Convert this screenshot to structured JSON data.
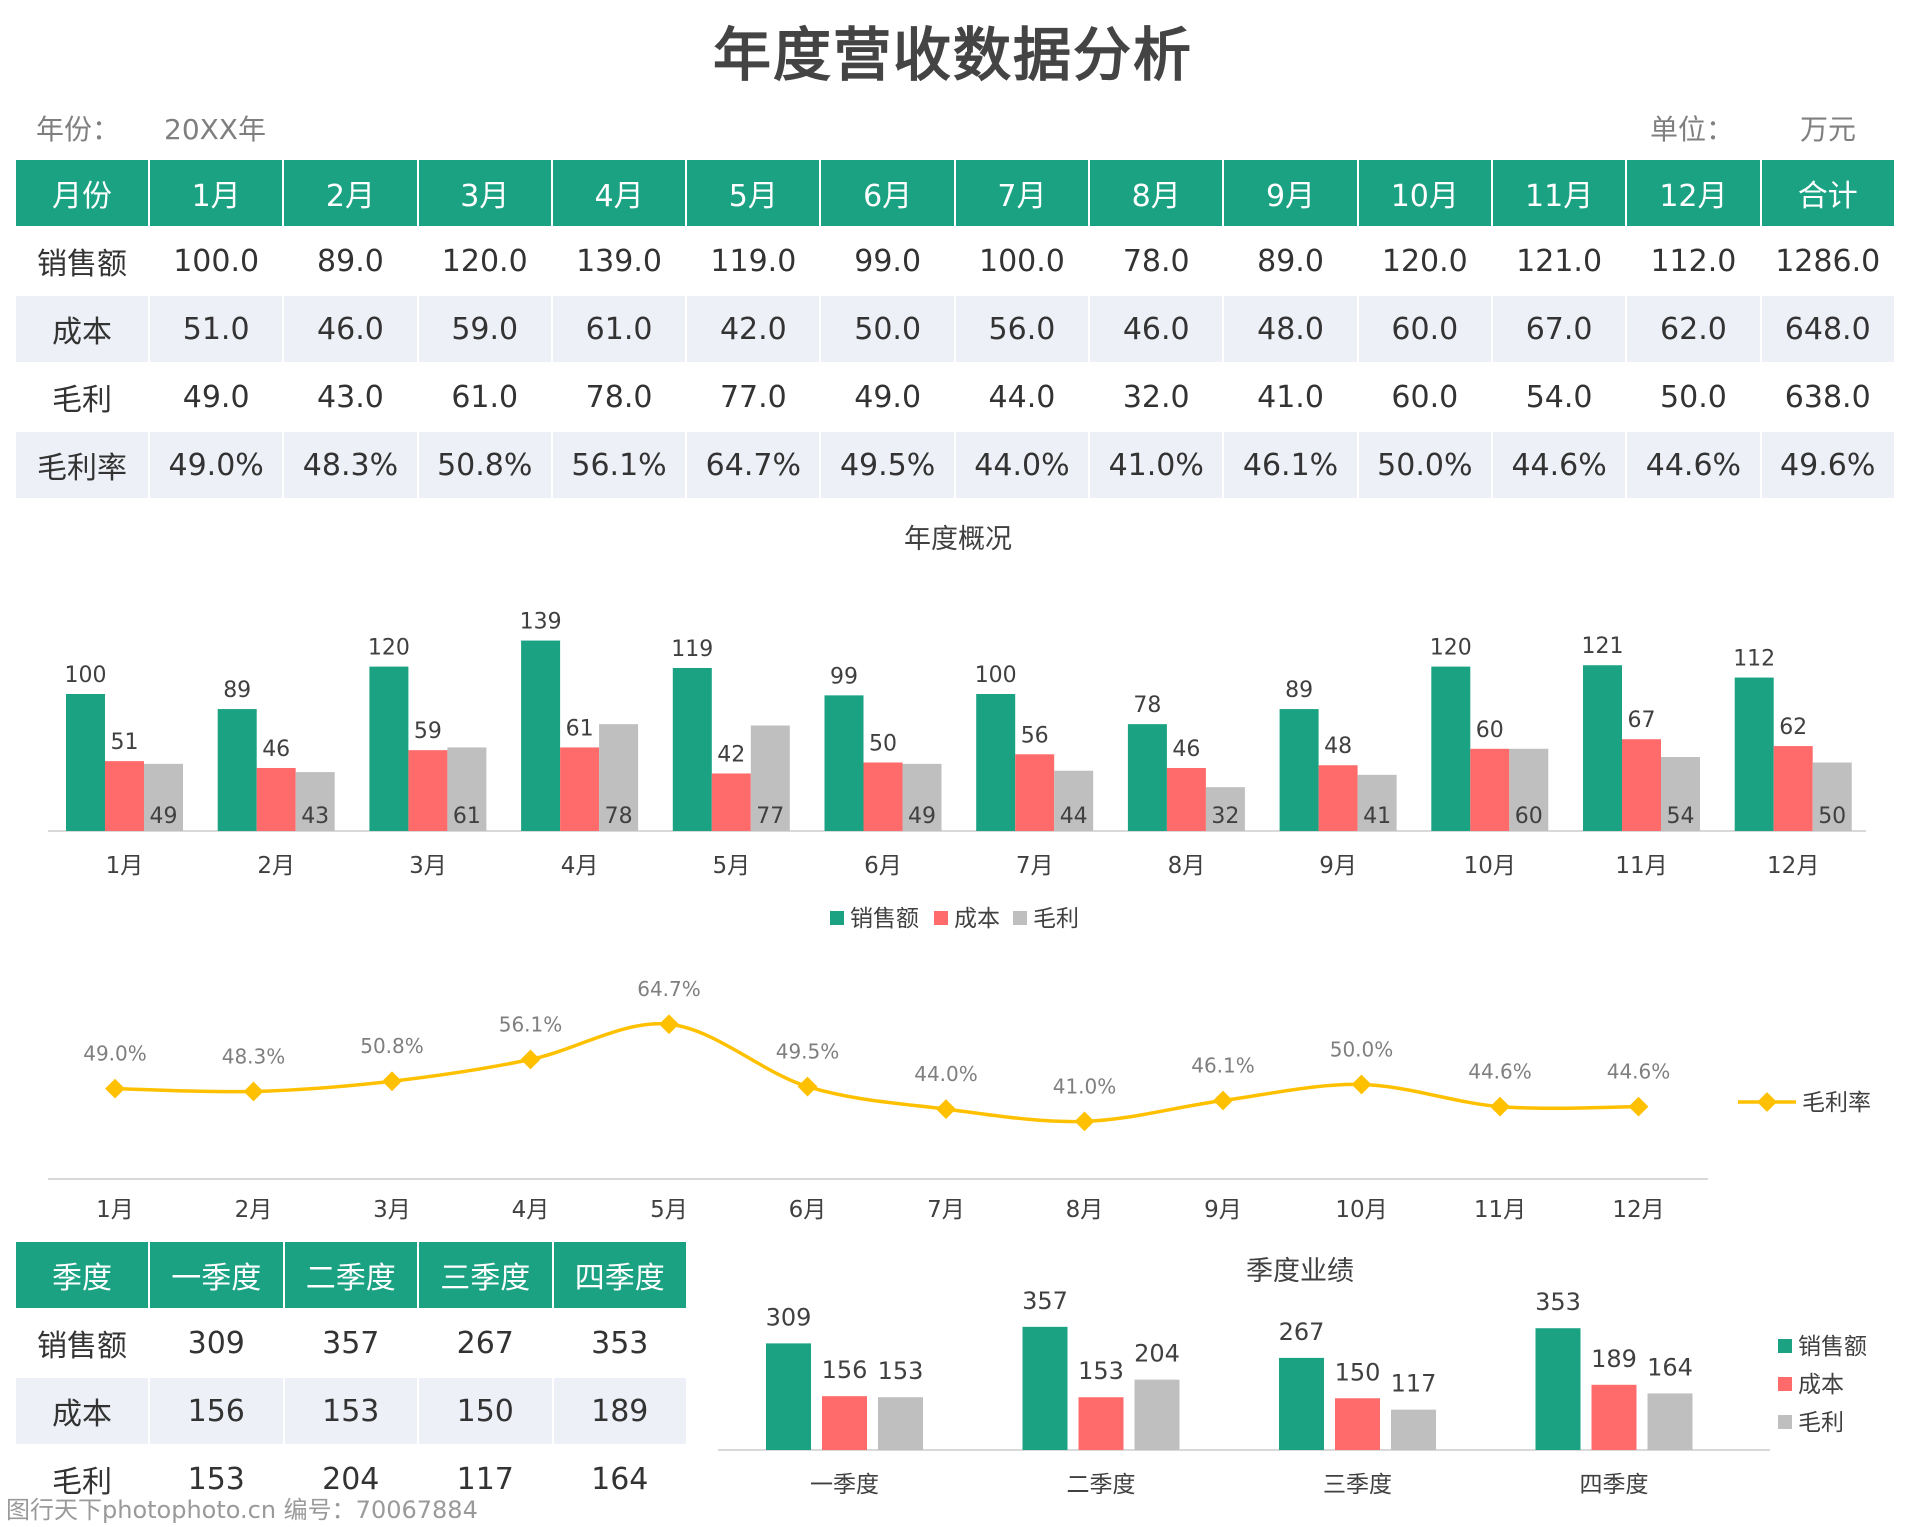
{
  "header": {
    "title": "年度营收数据分析",
    "year_label": "年份：",
    "year_value": "20XX年",
    "unit_label": "单位：",
    "unit_value": "万元"
  },
  "monthly_table": {
    "headers": [
      "月份",
      "1月",
      "2月",
      "3月",
      "4月",
      "5月",
      "6月",
      "7月",
      "8月",
      "9月",
      "10月",
      "11月",
      "12月",
      "合计"
    ],
    "rows": [
      [
        "销售额",
        "100.0",
        "89.0",
        "120.0",
        "139.0",
        "119.0",
        "99.0",
        "100.0",
        "78.0",
        "89.0",
        "120.0",
        "121.0",
        "112.0",
        "1286.0"
      ],
      [
        "成本",
        "51.0",
        "46.0",
        "59.0",
        "61.0",
        "42.0",
        "50.0",
        "56.0",
        "46.0",
        "48.0",
        "60.0",
        "67.0",
        "62.0",
        "648.0"
      ],
      [
        "毛利",
        "49.0",
        "43.0",
        "61.0",
        "78.0",
        "77.0",
        "49.0",
        "44.0",
        "32.0",
        "41.0",
        "60.0",
        "54.0",
        "50.0",
        "638.0"
      ],
      [
        "毛利率",
        "49.0%",
        "48.3%",
        "50.8%",
        "56.1%",
        "64.7%",
        "49.5%",
        "44.0%",
        "41.0%",
        "46.1%",
        "50.0%",
        "44.6%",
        "44.6%",
        "49.6%"
      ]
    ]
  },
  "quarter_table": {
    "headers": [
      "季度",
      "一季度",
      "二季度",
      "三季度",
      "四季度"
    ],
    "rows": [
      [
        "销售额",
        "309",
        "357",
        "267",
        "353"
      ],
      [
        "成本",
        "156",
        "153",
        "150",
        "189"
      ],
      [
        "毛利",
        "153",
        "204",
        "117",
        "164"
      ]
    ]
  },
  "colors": {
    "accent": "#1aa283",
    "sales": "#1aa283",
    "cost": "#ff6b6b",
    "profit": "#bfbfbf",
    "rate": "#ffc000"
  },
  "watermark": "图行天下photophoto.cn 编号：70067884",
  "chart_data": [
    {
      "type": "bar",
      "title": "年度概况",
      "categories": [
        "1月",
        "2月",
        "3月",
        "4月",
        "5月",
        "6月",
        "7月",
        "8月",
        "9月",
        "10月",
        "11月",
        "12月"
      ],
      "series": [
        {
          "name": "销售额",
          "values": [
            100.0,
            89.0,
            120.0,
            139.0,
            119.0,
            99.0,
            100.0,
            78.0,
            89.0,
            120.0,
            121.0,
            112.0
          ]
        },
        {
          "name": "成本",
          "values": [
            51.0,
            46.0,
            59.0,
            61.0,
            42.0,
            50.0,
            56.0,
            46.0,
            48.0,
            60.0,
            67.0,
            62.0
          ]
        },
        {
          "name": "毛利",
          "values": [
            49.0,
            43.0,
            61.0,
            78.0,
            77.0,
            49.0,
            44.0,
            32.0,
            41.0,
            60.0,
            54.0,
            50.0
          ]
        }
      ],
      "ylim": [
        0,
        160
      ],
      "legend": "bottom"
    },
    {
      "type": "line",
      "categories": [
        "1月",
        "2月",
        "3月",
        "4月",
        "5月",
        "6月",
        "7月",
        "8月",
        "9月",
        "10月",
        "11月",
        "12月"
      ],
      "series": [
        {
          "name": "毛利率",
          "values": [
            49.0,
            48.3,
            50.8,
            56.1,
            64.7,
            49.5,
            44.0,
            41.0,
            46.1,
            50.0,
            44.6,
            44.6
          ],
          "labels": [
            "49.0%",
            "48.3%",
            "50.8%",
            "56.1%",
            "64.7%",
            "49.5%",
            "44.0%",
            "41.0%",
            "46.1%",
            "50.0%",
            "44.6%",
            "44.6%"
          ]
        }
      ],
      "legend": "right"
    },
    {
      "type": "bar",
      "title": "季度业绩",
      "categories": [
        "一季度",
        "二季度",
        "三季度",
        "四季度"
      ],
      "series": [
        {
          "name": "销售额",
          "values": [
            309,
            357,
            267,
            353
          ]
        },
        {
          "name": "成本",
          "values": [
            156,
            153,
            150,
            189
          ]
        },
        {
          "name": "毛利",
          "values": [
            153,
            204,
            117,
            164
          ]
        }
      ],
      "legend": "right"
    }
  ]
}
